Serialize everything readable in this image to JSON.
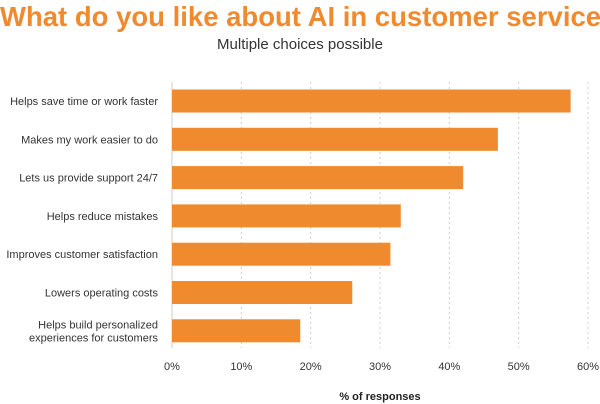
{
  "colors": {
    "accent": "#f08a2e",
    "bar": "#f08a2e",
    "grid": "#cccccc"
  },
  "chart_data": {
    "type": "bar",
    "orientation": "horizontal",
    "title": "What do you like about AI in customer service?",
    "subtitle": "Multiple choices possible",
    "xlabel": "% of responses",
    "ylabel": "",
    "categories": [
      [
        "Helps save time or work faster"
      ],
      [
        "Makes my work easier to do"
      ],
      [
        "Lets us provide support 24/7"
      ],
      [
        "Helps reduce mistakes"
      ],
      [
        "Improves customer satisfaction"
      ],
      [
        "Lowers operating costs"
      ],
      [
        "Helps build personalized",
        "experiences for customers"
      ]
    ],
    "values": [
      57.5,
      47,
      42,
      33,
      31.5,
      26,
      18.5
    ],
    "xlim": [
      0,
      60
    ],
    "xticks": [
      0,
      10,
      20,
      30,
      40,
      50,
      60
    ],
    "xtick_labels": [
      "0%",
      "10%",
      "20%",
      "30%",
      "40%",
      "50%",
      "60%"
    ],
    "grid": true,
    "legend": "none"
  }
}
